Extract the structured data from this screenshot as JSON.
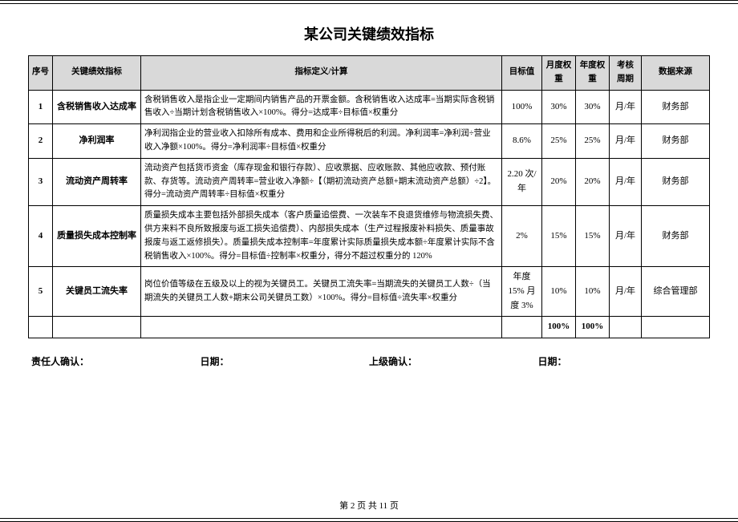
{
  "doc": {
    "title": "某公司关键绩效指标",
    "footer": "第 2 页 共 11 页"
  },
  "table": {
    "headers": {
      "seq": "序号",
      "name": "关键绩效指标",
      "def": "指标定义/计算",
      "target": "目标值",
      "month_weight": "月度权重",
      "year_weight": "年度权重",
      "cycle": "考核周期",
      "source": "数据来源"
    },
    "rows": [
      {
        "seq": "1",
        "name": "含税销售收入达成率",
        "def": "含税销售收入是指企业一定期间内销售产品的开票金额。含税销售收入达成率=当期实际含税销售收入÷当期计划含税销售收入×100%。得分=达成率÷目标值×权重分",
        "target": "100%",
        "mw": "30%",
        "yw": "30%",
        "cycle": "月/年",
        "source": "财务部"
      },
      {
        "seq": "2",
        "name": "净利润率",
        "def": "净利润指企业的营业收入扣除所有成本、费用和企业所得税后的利润。净利润率=净利润÷营业收入净额×100%。得分=净利润率÷目标值×权重分",
        "target": "8.6%",
        "mw": "25%",
        "yw": "25%",
        "cycle": "月/年",
        "source": "财务部"
      },
      {
        "seq": "3",
        "name": "流动资产周转率",
        "def": "流动资产包括货币资金（库存现金和银行存款）、应收票据、应收账款、其他应收款、预付账款、存货等。流动资产周转率=营业收入净额÷【（期初流动资产总额+期末流动资产总额）÷2】。得分=流动资产周转率÷目标值×权重分",
        "target": "2.20 次/年",
        "mw": "20%",
        "yw": "20%",
        "cycle": "月/年",
        "source": "财务部"
      },
      {
        "seq": "4",
        "name": "质量损失成本控制率",
        "def": "质量损失成本主要包括外部损失成本（客户质量追偿费、一次装车不良退货维修与物流损失费、供方来料不良所致报废与返工损失追偿费）、内部损失成本（生产过程报废补料损失、质量事故报废与返工返修损失）。质量损失成本控制率=年度累计实际质量损失成本额÷年度累计实际不含税销售收入×100%。得分=目标值÷控制率×权重分，得分不超过权重分的 120%",
        "target": "2%",
        "mw": "15%",
        "yw": "15%",
        "cycle": "月/年",
        "source": "财务部"
      },
      {
        "seq": "5",
        "name": "关键员工流失率",
        "def": "岗位价值等级在五级及以上的视为关键员工。关键员工流失率=当期流失的关键员工人数÷（当期流失的关键员工人数+期末公司关键员工数）×100%。得分=目标值÷流失率×权重分",
        "target": "年度 15% 月度 3%",
        "mw": "10%",
        "yw": "10%",
        "cycle": "月/年",
        "source": "综合管理部"
      }
    ],
    "total": {
      "mw": "100%",
      "yw": "100%"
    }
  },
  "sign": {
    "confirm": "责任人确认：",
    "date1": "日期：",
    "superior": "上级确认：",
    "date2": "日期："
  },
  "style": {
    "header_bg": "#d9d9d9",
    "border_color": "#000000",
    "font_body": 11,
    "font_title": 18
  }
}
